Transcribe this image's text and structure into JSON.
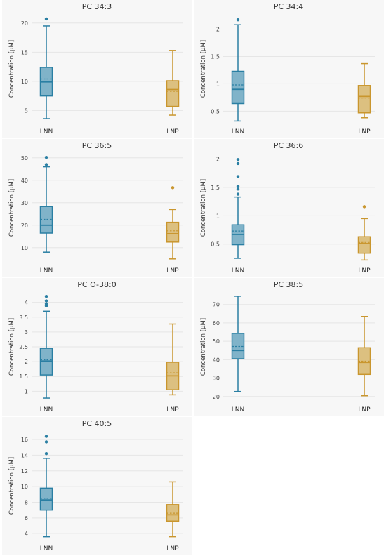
{
  "chart_data": [
    {
      "type": "box",
      "title": "PC 34:3",
      "ylabel": "Concentration [µM]",
      "categories": [
        "LNN",
        "LNP"
      ],
      "yticks": [
        5,
        10,
        15,
        20
      ],
      "ylim": [
        3,
        21.3
      ],
      "colors": {
        "LNN": "#2a7fa3",
        "LNP": "#c9962e"
      },
      "series": [
        {
          "name": "LNN",
          "min": 3.6,
          "q1": 7.5,
          "median": 9.9,
          "mean": 10.4,
          "q3": 12.4,
          "max": 19.5,
          "outliers": [
            20.7
          ]
        },
        {
          "name": "LNP",
          "min": 4.2,
          "q1": 5.7,
          "median": 8.6,
          "mean": 8.3,
          "q3": 10.1,
          "max": 15.3,
          "outliers": []
        }
      ]
    },
    {
      "type": "box",
      "title": "PC 34:4",
      "ylabel": "Concentration [µM]",
      "categories": [
        "LNN",
        "LNP"
      ],
      "yticks": [
        0.5,
        1,
        1.5,
        2
      ],
      "ylim": [
        0.3,
        2.25
      ],
      "colors": {
        "LNN": "#2a7fa3",
        "LNP": "#c9962e"
      },
      "series": [
        {
          "name": "LNN",
          "min": 0.32,
          "q1": 0.64,
          "median": 0.9,
          "mean": 0.98,
          "q3": 1.23,
          "max": 2.08,
          "outliers": [
            2.17
          ]
        },
        {
          "name": "LNP",
          "min": 0.38,
          "q1": 0.47,
          "median": 0.77,
          "mean": 0.74,
          "q3": 0.97,
          "max": 1.37,
          "outliers": []
        }
      ]
    },
    {
      "type": "box",
      "title": "PC 36:5",
      "ylabel": "Concentration [µM]",
      "categories": [
        "LNN",
        "LNP"
      ],
      "yticks": [
        10,
        20,
        30,
        40,
        50
      ],
      "ylim": [
        4,
        51.5
      ],
      "colors": {
        "LNN": "#2a7fa3",
        "LNP": "#c9962e"
      },
      "series": [
        {
          "name": "LNN",
          "min": 8,
          "q1": 16.5,
          "median": 20,
          "mean": 22.6,
          "q3": 28.3,
          "max": 46,
          "outliers": [
            47,
            50.2
          ]
        },
        {
          "name": "LNP",
          "min": 5,
          "q1": 12.5,
          "median": 16.2,
          "mean": 17.5,
          "q3": 21.3,
          "max": 27,
          "outliers": [
            36.7
          ]
        }
      ]
    },
    {
      "type": "box",
      "title": "PC 36:6",
      "ylabel": "Concentration [µM]",
      "categories": [
        "LNN",
        "LNP"
      ],
      "yticks": [
        0.5,
        1,
        1.5,
        2
      ],
      "ylim": [
        0.2,
        2.08
      ],
      "colors": {
        "LNN": "#2a7fa3",
        "LNP": "#c9962e"
      },
      "series": [
        {
          "name": "LNN",
          "min": 0.25,
          "q1": 0.49,
          "median": 0.67,
          "mean": 0.73,
          "q3": 0.84,
          "max": 1.33,
          "outliers": [
            1.38,
            1.47,
            1.52,
            1.69,
            1.92,
            1.99
          ]
        },
        {
          "name": "LNP",
          "min": 0.22,
          "q1": 0.34,
          "median": 0.51,
          "mean": 0.53,
          "q3": 0.63,
          "max": 0.95,
          "outliers": [
            1.16
          ]
        }
      ]
    },
    {
      "type": "box",
      "title": "PC O-38:0",
      "ylabel": "Concentration [µM]",
      "categories": [
        "LNN",
        "LNP"
      ],
      "yticks": [
        1,
        1.5,
        2,
        2.5,
        3,
        3.5,
        4
      ],
      "ylim": [
        0.7,
        4.3
      ],
      "colors": {
        "LNN": "#2a7fa3",
        "LNP": "#c9962e"
      },
      "series": [
        {
          "name": "LNN",
          "min": 0.77,
          "q1": 1.55,
          "median": 2.02,
          "mean": 2.06,
          "q3": 2.45,
          "max": 3.7,
          "outliers": [
            3.88,
            3.95,
            4.05,
            4.2
          ]
        },
        {
          "name": "LNP",
          "min": 0.88,
          "q1": 1.05,
          "median": 1.52,
          "mean": 1.62,
          "q3": 1.98,
          "max": 3.27,
          "outliers": []
        }
      ]
    },
    {
      "type": "box",
      "title": "PC 38:5",
      "ylabel": "Concentration [µM]",
      "categories": [
        "LNN",
        "LNP"
      ],
      "yticks": [
        20,
        30,
        40,
        50,
        60,
        70
      ],
      "ylim": [
        18,
        76
      ],
      "colors": {
        "LNN": "#2a7fa3",
        "LNP": "#c9962e"
      },
      "series": [
        {
          "name": "LNN",
          "min": 22.7,
          "q1": 40.5,
          "median": 45,
          "mean": 47.2,
          "q3": 54.3,
          "max": 74.5,
          "outliers": []
        },
        {
          "name": "LNP",
          "min": 20.4,
          "q1": 32,
          "median": 38.5,
          "mean": 39.2,
          "q3": 46.5,
          "max": 63.5,
          "outliers": []
        }
      ]
    },
    {
      "type": "box",
      "title": "PC 40:5",
      "ylabel": "Concentration [µM]",
      "categories": [
        "LNN",
        "LNP"
      ],
      "yticks": [
        4,
        6,
        8,
        10,
        12,
        14,
        16
      ],
      "ylim": [
        3.3,
        16.9
      ],
      "colors": {
        "LNN": "#2a7fa3",
        "LNP": "#c9962e"
      },
      "series": [
        {
          "name": "LNN",
          "min": 3.6,
          "q1": 7,
          "median": 8.3,
          "mean": 8.5,
          "q3": 9.8,
          "max": 13.6,
          "outliers": [
            14.2,
            15.7,
            16.4
          ]
        },
        {
          "name": "LNP",
          "min": 3.6,
          "q1": 5.6,
          "median": 6.4,
          "mean": 6.6,
          "q3": 7.7,
          "max": 10.6,
          "outliers": []
        }
      ]
    }
  ]
}
